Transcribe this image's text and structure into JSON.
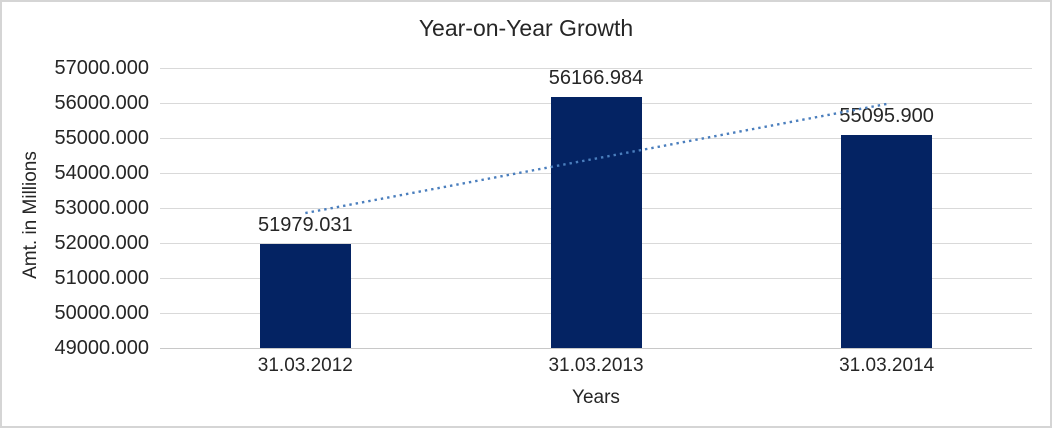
{
  "chart_data": {
    "type": "bar",
    "title": "Year-on-Year Growth",
    "xlabel": "Years",
    "ylabel": "Amt. in Millions",
    "categories": [
      "31.03.2012",
      "31.03.2013",
      "31.03.2014"
    ],
    "values": [
      51979.031,
      56166.984,
      55095.9
    ],
    "data_labels": [
      "51979.031",
      "56166.984",
      "55095.900"
    ],
    "ylim": [
      49000,
      57000
    ],
    "ytick_step": 1000,
    "ytick_labels": [
      "57000.000",
      "56000.000",
      "55000.000",
      "54000.000",
      "53000.000",
      "52000.000",
      "51000.000",
      "50000.000",
      "49000.000"
    ],
    "grid": true,
    "legend": "none",
    "trendline": {
      "type": "linear",
      "style": "dotted"
    },
    "colors": {
      "bar": "#042363",
      "trendline": "#4A7EBD",
      "gridline": "#D9D9D9",
      "axis_line": "#C8C8C8",
      "text": "#262626",
      "frame_border": "#D5D5D5"
    }
  }
}
